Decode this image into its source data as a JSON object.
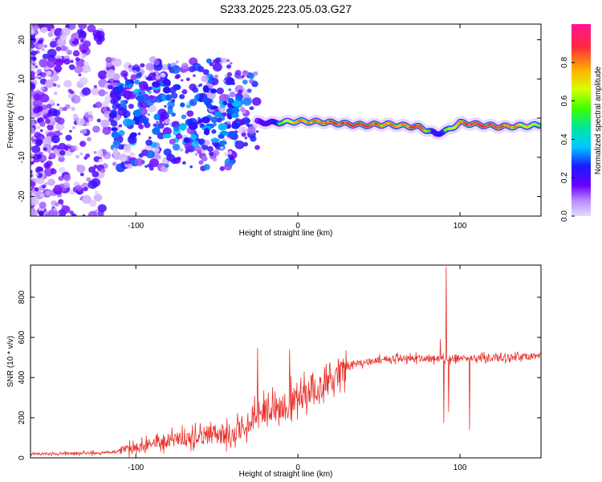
{
  "figure_title": "S233.2025.223.05.03.G27",
  "chart_data": [
    {
      "type": "heatmap",
      "title": "S233.2025.223.05.03.G27",
      "xlabel": "Height of straight line (km)",
      "ylabel": "Frequency (Hz)",
      "xlim": [
        -165,
        150
      ],
      "ylim": [
        -25,
        24
      ],
      "xticks": [
        -100,
        0,
        100
      ],
      "yticks": [
        20,
        10,
        0,
        -10,
        -20
      ],
      "colorbar": {
        "label": "Normalized spectral amplitude",
        "range": [
          0,
          1
        ],
        "ticks": [
          0.0,
          0.2,
          0.4,
          0.6,
          0.8
        ],
        "colormap": [
          "#e6d9ff",
          "#9b59ff",
          "#6a00ff",
          "#1a1aff",
          "#00c8ff",
          "#00ff7f",
          "#7fff00",
          "#ffff00",
          "#ff9900",
          "#ff2d55",
          "#ff1493"
        ]
      },
      "ridge": [
        {
          "x": -25,
          "f": -1.0,
          "a": 0.3
        },
        {
          "x": -15,
          "f": -1.2,
          "a": 0.45
        },
        {
          "x": 0,
          "f": -0.8,
          "a": 0.8
        },
        {
          "x": 15,
          "f": -1.0,
          "a": 0.8
        },
        {
          "x": 40,
          "f": -1.8,
          "a": 0.92
        },
        {
          "x": 55,
          "f": -1.6,
          "a": 0.75
        },
        {
          "x": 75,
          "f": -2.3,
          "a": 0.85
        },
        {
          "x": 85,
          "f": -4.0,
          "a": 0.4
        },
        {
          "x": 92,
          "f": -3.2,
          "a": 0.55
        },
        {
          "x": 100,
          "f": -1.2,
          "a": 0.85
        },
        {
          "x": 125,
          "f": -2.2,
          "a": 0.88
        },
        {
          "x": 150,
          "f": -1.8,
          "a": 0.5
        }
      ]
    },
    {
      "type": "line",
      "xlabel": "Height of straight line (km)",
      "ylabel": "SNR (10 * v/v)",
      "xlim": [
        -165,
        150
      ],
      "ylim": [
        0,
        960
      ],
      "xticks": [
        -100,
        0,
        100
      ],
      "yticks": [
        0,
        200,
        400,
        600,
        800
      ],
      "color": "#e8302a",
      "envelope": [
        {
          "x": -165,
          "y": 20
        },
        {
          "x": -120,
          "y": 25
        },
        {
          "x": -100,
          "y": 45
        },
        {
          "x": -80,
          "y": 90
        },
        {
          "x": -60,
          "y": 110
        },
        {
          "x": -40,
          "y": 120
        },
        {
          "x": -25,
          "y": 210
        },
        {
          "x": -10,
          "y": 260
        },
        {
          "x": 5,
          "y": 330
        },
        {
          "x": 20,
          "y": 410
        },
        {
          "x": 35,
          "y": 470
        },
        {
          "x": 60,
          "y": 495
        },
        {
          "x": 100,
          "y": 495
        },
        {
          "x": 150,
          "y": 505
        }
      ],
      "spikes": [
        {
          "x": -25,
          "y": 545
        },
        {
          "x": -5,
          "y": 540
        },
        {
          "x": 88,
          "y": 590
        },
        {
          "x": 90,
          "y": 175
        },
        {
          "x": 91.5,
          "y": 950
        },
        {
          "x": 93,
          "y": 230
        },
        {
          "x": 106,
          "y": 140
        }
      ]
    }
  ]
}
